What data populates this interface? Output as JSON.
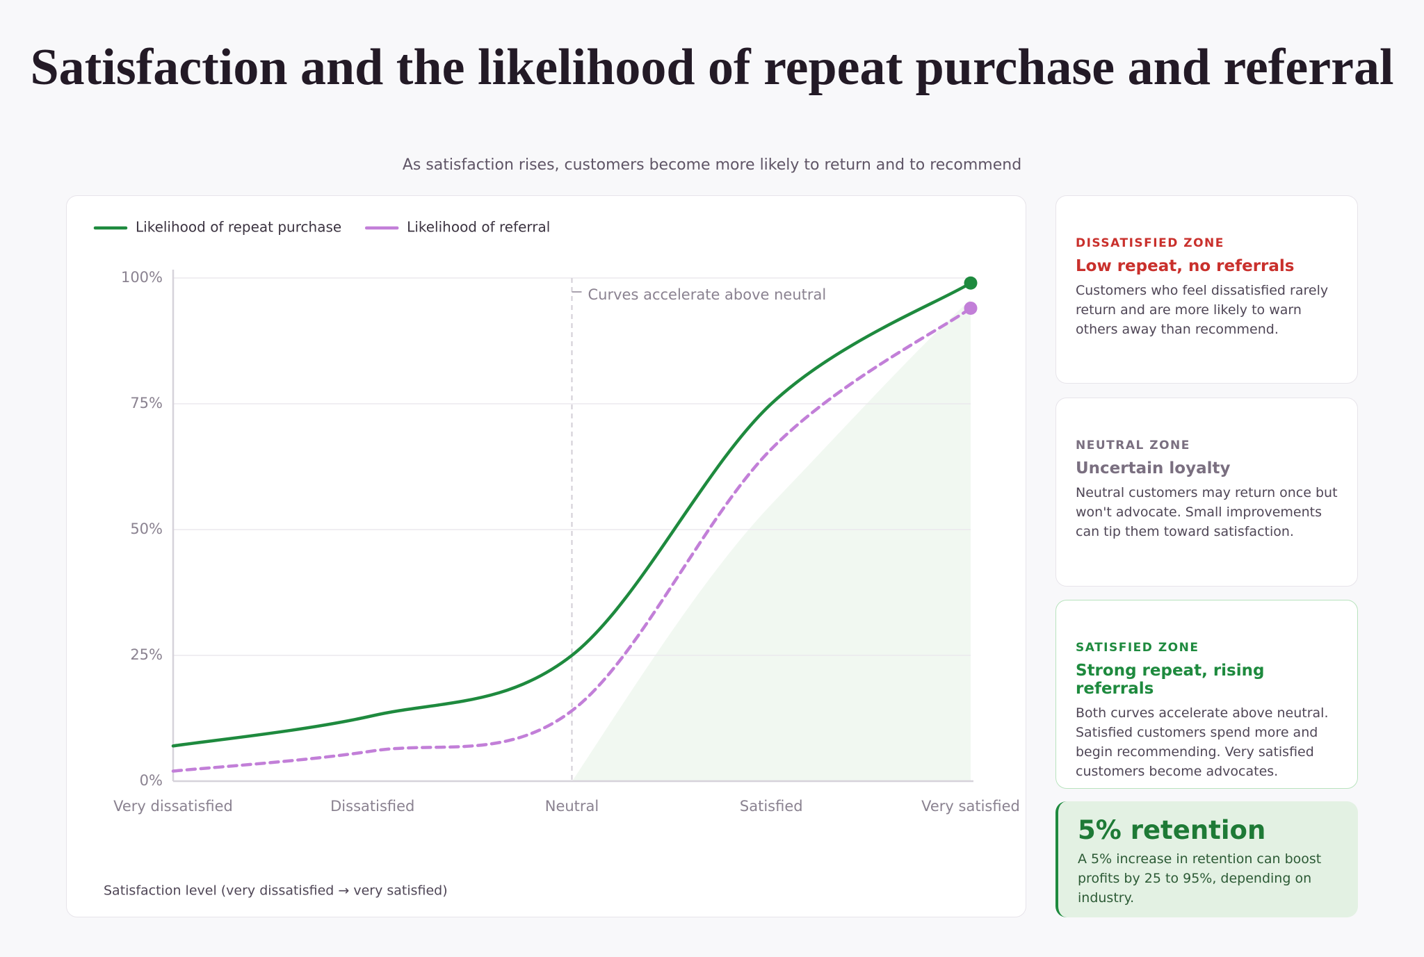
{
  "chart_data": {
    "type": "line",
    "title": "Satisfaction and the likelihood of repeat purchase and referral",
    "subtitle": "As satisfaction rises, customers become more likely to return and to recommend",
    "x_label": "Satisfaction level (very dissatisfied → very satisfied)",
    "categories": [
      "Very dissatisfied",
      "Dissatisfied",
      "Neutral",
      "Satisfied",
      "Very satisfied"
    ],
    "series": [
      {
        "name": "Likelihood of repeat purchase",
        "color": "#1e8a3e",
        "dashed": false,
        "values": [
          7,
          13,
          25,
          75,
          99
        ]
      },
      {
        "name": "Likelihood of referral",
        "color": "#c27fd8",
        "dashed": true,
        "values": [
          2,
          6,
          14,
          66,
          94
        ]
      }
    ],
    "ylim": [
      0,
      100
    ],
    "yticks": [
      {
        "value": 0,
        "label": "0%"
      },
      {
        "value": 25,
        "label": "25%"
      },
      {
        "value": 50,
        "label": "50%"
      },
      {
        "value": 75,
        "label": "75%"
      },
      {
        "value": 100,
        "label": "100%"
      }
    ],
    "grid": true,
    "legend": "top-left",
    "annotation": {
      "text": "Curves accelerate above neutral",
      "category": "Neutral"
    }
  },
  "zones": [
    {
      "label": "DISSATISFIED ZONE",
      "heading": "Low repeat, no referrals",
      "color": "#c9302c",
      "body": "Customers who feel dissatisfied rarely return and are more likely to warn others away than recommend."
    },
    {
      "label": "NEUTRAL ZONE",
      "heading": "Uncertain loyalty",
      "color": "#7a6f80",
      "body": "Neutral customers may return once but won't advocate. Small improvements can tip them toward satisfaction."
    },
    {
      "label": "SATISFIED ZONE",
      "heading": "Strong repeat, rising referrals",
      "color": "#1e8a3e",
      "body": "Both curves accelerate above neutral. Satisfied customers spend more and begin recommending. Very satisfied customers become advocates."
    }
  ],
  "stat": {
    "headline": "5% retention",
    "body": "A 5% increase in retention can boost profits by 25 to 95%, depending on industry."
  }
}
